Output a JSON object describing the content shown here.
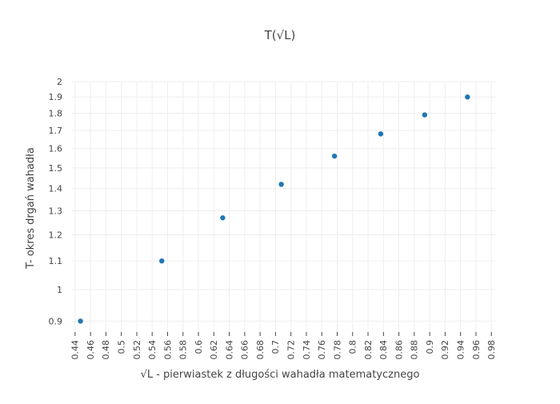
{
  "chart_data": {
    "type": "scatter",
    "title": "T(√L)",
    "xlabel": "√L - pierwiastek z długości wahadła matematycznego",
    "ylabel": "T- okres drgań wahadła",
    "x_scale": "linear",
    "y_scale": "log",
    "xlim": [
      0.436,
      0.986
    ],
    "ylim": [
      0.868,
      2.0
    ],
    "x_ticks": [
      "0.44",
      "0.46",
      "0.48",
      "0.5",
      "0.52",
      "0.54",
      "0.56",
      "0.58",
      "0.6",
      "0.62",
      "0.64",
      "0.66",
      "0.68",
      "0.7",
      "0.72",
      "0.74",
      "0.76",
      "0.78",
      "0.8",
      "0.82",
      "0.84",
      "0.86",
      "0.88",
      "0.9",
      "0.92",
      "0.94",
      "0.96",
      "0.98"
    ],
    "y_ticks": [
      "0.9",
      "1",
      "1.1",
      "1.2",
      "1.3",
      "1.4",
      "1.5",
      "1.6",
      "1.7",
      "1.8",
      "1.9",
      "2"
    ],
    "grid": true,
    "legend": "none",
    "marker_color": "#1f77b4",
    "series": [
      {
        "x": [
          0.447,
          0.5525,
          0.6315,
          0.7075,
          0.7765,
          0.8365,
          0.8935,
          0.949
        ],
        "y": [
          0.9,
          1.1,
          1.27,
          1.42,
          1.56,
          1.68,
          1.79,
          1.9
        ]
      }
    ]
  }
}
